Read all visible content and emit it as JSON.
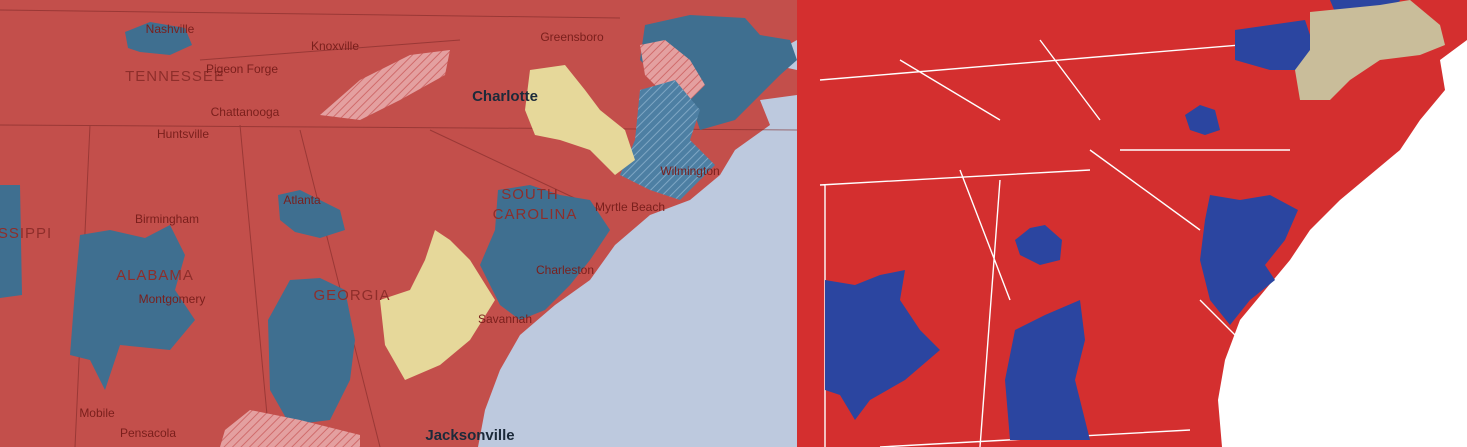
{
  "left_map": {
    "labels": [
      "Nashville",
      "Knoxville",
      "TENNESSEE",
      "Pigeon Forge",
      "Chattanooga",
      "Huntsville",
      "Greensboro",
      "Charlotte",
      "Wilmington",
      "Myrtle Beach",
      "SOUTH",
      "CAROLINA",
      "Charleston",
      "Savannah",
      "Birmingham",
      "ALABAMA",
      "Montgomery",
      "GEORGIA",
      "Atlanta",
      "SSIPPI",
      "Mobile",
      "Pensacola",
      "Jacksonville"
    ]
  }
}
